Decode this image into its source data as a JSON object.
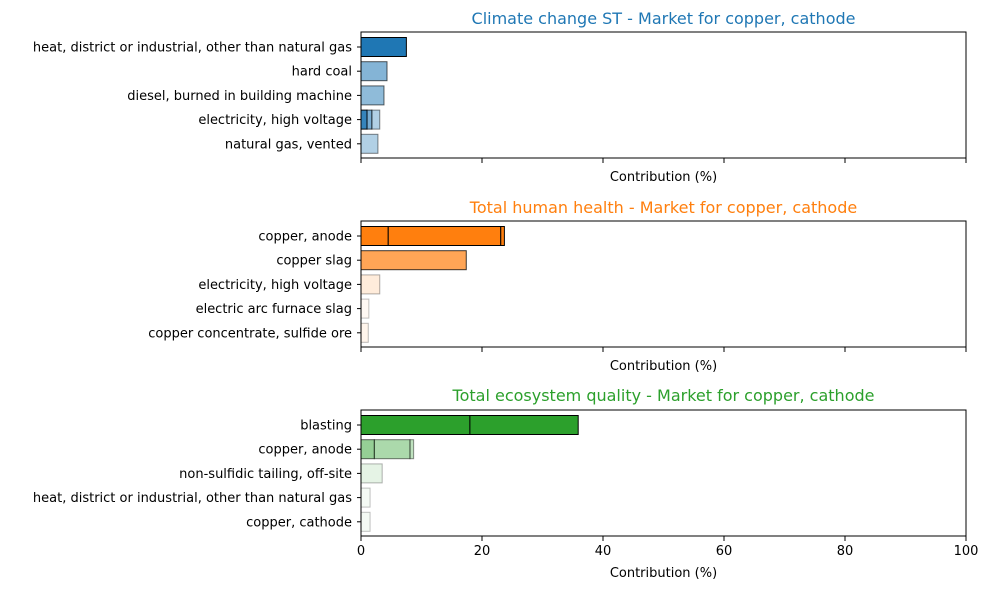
{
  "chart_data": [
    {
      "type": "bar",
      "orientation": "horizontal",
      "stacked": true,
      "title": "Climate change ST - Market for copper, cathode",
      "title_color": "#1f77b4",
      "xlabel": "Contribution (%)",
      "xlim": [
        0,
        100
      ],
      "xticks": [
        0,
        20,
        40,
        60,
        80,
        100
      ],
      "show_xtick_labels": false,
      "color": "#1f77b4",
      "categories": [
        "heat, district or industrial, other than natural gas",
        "hard coal",
        "diesel, burned in building machine",
        "electricity, high voltage",
        "natural gas, vented"
      ],
      "segments": [
        [
          {
            "value": 7.5,
            "opacity": 1.0
          }
        ],
        [
          {
            "value": 4.3,
            "opacity": 0.55
          }
        ],
        [
          {
            "value": 3.8,
            "opacity": 0.5
          }
        ],
        [
          {
            "value": 1.0,
            "opacity": 0.9
          },
          {
            "value": 0.8,
            "opacity": 0.6
          },
          {
            "value": 1.3,
            "opacity": 0.35
          }
        ],
        [
          {
            "value": 2.8,
            "opacity": 0.35
          }
        ]
      ]
    },
    {
      "type": "bar",
      "orientation": "horizontal",
      "stacked": true,
      "title": "Total human health - Market for copper, cathode",
      "title_color": "#ff7f0e",
      "xlabel": "Contribution (%)",
      "xlim": [
        0,
        100
      ],
      "xticks": [
        0,
        20,
        40,
        60,
        80,
        100
      ],
      "show_xtick_labels": false,
      "color": "#ff7f0e",
      "categories": [
        "copper, anode",
        "copper slag",
        "electricity, high voltage",
        "electric arc furnace slag",
        "copper concentrate, sulfide ore"
      ],
      "segments": [
        [
          {
            "value": 4.5,
            "opacity": 1.0
          },
          {
            "value": 18.6,
            "opacity": 1.0
          },
          {
            "value": 0.6,
            "opacity": 1.0
          }
        ],
        [
          {
            "value": 17.4,
            "opacity": 0.7
          }
        ],
        [
          {
            "value": 3.1,
            "opacity": 0.15
          }
        ],
        [
          {
            "value": 1.3,
            "opacity": 0.05
          }
        ],
        [
          {
            "value": 1.2,
            "opacity": 0.08
          }
        ]
      ]
    },
    {
      "type": "bar",
      "orientation": "horizontal",
      "stacked": true,
      "title": "Total ecosystem quality - Market for copper, cathode",
      "title_color": "#2ca02c",
      "xlabel": "Contribution (%)",
      "xlim": [
        0,
        100
      ],
      "xticks": [
        0,
        20,
        40,
        60,
        80,
        100
      ],
      "show_xtick_labels": true,
      "color": "#2ca02c",
      "categories": [
        "blasting",
        "copper, anode",
        "non-sulfidic tailing, off-site",
        "heat, district or industrial, other than natural gas",
        "copper, cathode"
      ],
      "segments": [
        [
          {
            "value": 18.0,
            "opacity": 1.0
          },
          {
            "value": 17.9,
            "opacity": 1.0
          }
        ],
        [
          {
            "value": 2.2,
            "opacity": 0.5
          },
          {
            "value": 5.9,
            "opacity": 0.4
          },
          {
            "value": 0.6,
            "opacity": 0.3
          }
        ],
        [
          {
            "value": 3.5,
            "opacity": 0.12
          }
        ],
        [
          {
            "value": 1.5,
            "opacity": 0.05
          }
        ],
        [
          {
            "value": 1.5,
            "opacity": 0.05
          }
        ]
      ]
    }
  ]
}
